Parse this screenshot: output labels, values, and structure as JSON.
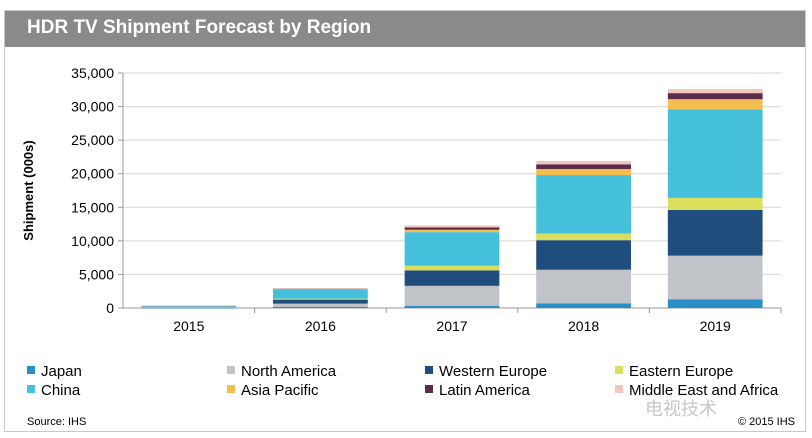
{
  "chart_data": {
    "type": "bar",
    "stacked": true,
    "title": "HDR TV Shipment Forecast by Region",
    "ylabel": "Shipment (000s)",
    "xlabel": "",
    "ylim": [
      0,
      35000
    ],
    "yticks": [
      "0",
      "5,000",
      "10,000",
      "15,000",
      "20,000",
      "25,000",
      "30,000",
      "35,000"
    ],
    "grid": true,
    "legend_position": "bottom",
    "categories": [
      "2015",
      "2016",
      "2017",
      "2018",
      "2019"
    ],
    "series": [
      {
        "name": "Japan",
        "color": "#2a8fc6",
        "values": [
          20,
          150,
          300,
          700,
          1300
        ]
      },
      {
        "name": "North America",
        "color": "#c0c4c8",
        "values": [
          80,
          500,
          3000,
          5000,
          6500
        ]
      },
      {
        "name": "Western Europe",
        "color": "#1f4e7e",
        "values": [
          30,
          600,
          2300,
          4400,
          6800
        ]
      },
      {
        "name": "Eastern Europe",
        "color": "#d9df5c",
        "values": [
          10,
          150,
          700,
          1000,
          1800
        ]
      },
      {
        "name": "China",
        "color": "#44c0da",
        "values": [
          180,
          1300,
          5000,
          8700,
          13200
        ]
      },
      {
        "name": "Asia Pacific",
        "color": "#f5bd4f",
        "values": [
          5,
          100,
          350,
          900,
          1500
        ]
      },
      {
        "name": "Latin America",
        "color": "#5a2c4c",
        "values": [
          5,
          80,
          350,
          700,
          900
        ]
      },
      {
        "name": "Middle East and Africa",
        "color": "#f2c6bd",
        "values": [
          5,
          70,
          300,
          500,
          600
        ]
      }
    ]
  },
  "footer": {
    "source": "Source: IHS",
    "copyright": "© 2015 IHS"
  },
  "watermark": "电视技术"
}
